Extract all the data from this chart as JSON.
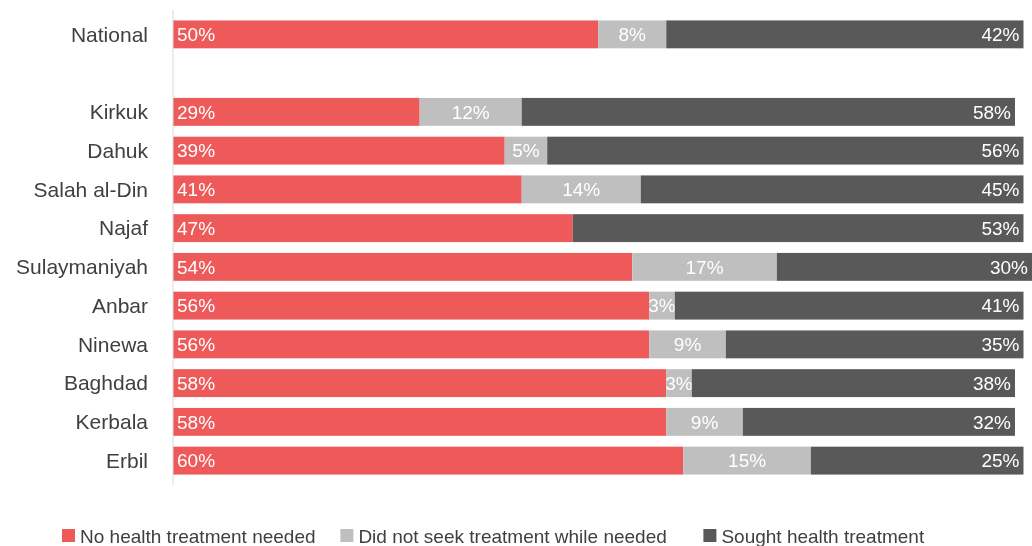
{
  "chart_data": {
    "type": "bar",
    "orientation": "horizontal",
    "stacked": true,
    "categories": [
      "National",
      null,
      "Kirkuk",
      "Dahuk",
      "Salah al-Din",
      "Najaf",
      "Sulaymaniyah",
      "Anbar",
      "Ninewa",
      "Baghdad",
      "Kerbala",
      "Erbil"
    ],
    "series": [
      {
        "name": "No health treatment needed",
        "color": "#ee5a5a",
        "values": [
          50,
          null,
          29,
          39,
          41,
          47,
          54,
          56,
          56,
          58,
          58,
          60
        ],
        "value_labels": [
          "50%",
          null,
          "29%",
          "39%",
          "41%",
          "47%",
          "54%",
          "56%",
          "56%",
          "58%",
          "58%",
          "60%"
        ]
      },
      {
        "name": "Did not seek treatment while needed",
        "color": "#bfbfbf",
        "values": [
          8,
          null,
          12,
          5,
          14,
          null,
          17,
          3,
          9,
          3,
          9,
          15
        ],
        "value_labels": [
          "8%",
          null,
          "12%",
          "5%",
          "14%",
          null,
          "17%",
          "3%",
          "9%",
          "3%",
          "9%",
          "15%"
        ]
      },
      {
        "name": "Sought health treatment",
        "color": "#595959",
        "values": [
          42,
          null,
          58,
          56,
          45,
          53,
          30,
          41,
          35,
          38,
          32,
          25
        ],
        "value_labels": [
          "42%",
          null,
          "58%",
          "56%",
          "45%",
          "53%",
          "30%",
          "41%",
          "35%",
          "38%",
          "32%",
          "25%"
        ]
      }
    ],
    "xlim": [
      0,
      101
    ],
    "tick_labels": "y",
    "legend": "bottom"
  }
}
